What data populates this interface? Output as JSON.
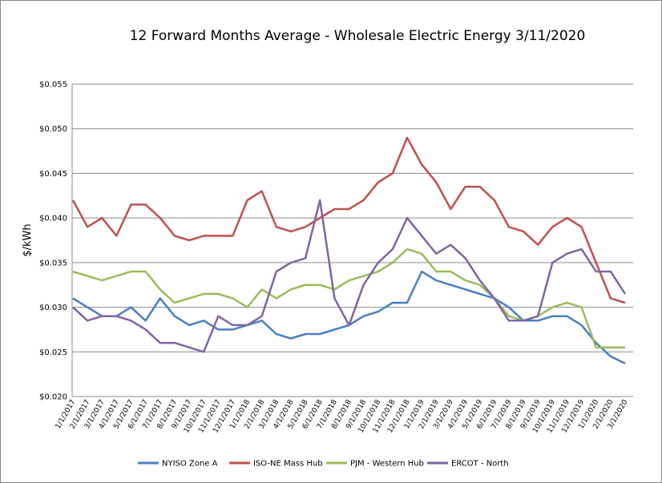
{
  "chart_data": {
    "type": "line",
    "title": "12 Forward Months Average - Wholesale Electric Energy 3/11/2020",
    "y_label": "$/kWh",
    "categories": [
      "1/1/2017",
      "2/1/2017",
      "3/1/2017",
      "4/1/2017",
      "5/1/2017",
      "6/1/2017",
      "7/1/2017",
      "8/1/2017",
      "9/1/2017",
      "10/1/2017",
      "11/1/2017",
      "12/1/2017",
      "1/1/2018",
      "2/1/2018",
      "3/1/2018",
      "4/1/2018",
      "5/1/2018",
      "6/1/2018",
      "7/1/2018",
      "8/1/2018",
      "9/1/2018",
      "10/1/2018",
      "11/1/2018",
      "12/1/2018",
      "1/1/2019",
      "2/1/2019",
      "3/1/2019",
      "4/1/2019",
      "5/1/2019",
      "6/1/2019",
      "7/1/2019",
      "8/1/2019",
      "9/1/2019",
      "10/1/2019",
      "11/1/2019",
      "12/1/2019",
      "1/1/2020",
      "2/1/2020",
      "3/1/2020"
    ],
    "series": [
      {
        "name": "NYISO Zone A",
        "color": "#4a7fc1",
        "values": [
          0.031,
          0.03,
          0.029,
          0.029,
          0.03,
          0.0285,
          0.031,
          0.029,
          0.028,
          0.0285,
          0.0275,
          0.0275,
          0.028,
          0.0285,
          0.027,
          0.0265,
          0.027,
          0.027,
          0.0275,
          0.028,
          0.029,
          0.0295,
          0.0305,
          0.0305,
          0.034,
          0.033,
          0.0325,
          0.032,
          0.0315,
          0.031,
          0.03,
          0.0285,
          0.0285,
          0.029,
          0.029,
          0.028,
          0.026,
          0.0245,
          0.0237
        ]
      },
      {
        "name": "ISO-NE Mass Hub",
        "color": "#c0504d",
        "values": [
          0.042,
          0.039,
          0.04,
          0.038,
          0.0415,
          0.0415,
          0.04,
          0.038,
          0.0375,
          0.038,
          0.038,
          0.038,
          0.042,
          0.043,
          0.039,
          0.0385,
          0.039,
          0.04,
          0.041,
          0.041,
          0.042,
          0.044,
          0.045,
          0.049,
          0.046,
          0.044,
          0.041,
          0.0435,
          0.0435,
          0.042,
          0.039,
          0.0385,
          0.037,
          0.039,
          0.04,
          0.039,
          0.035,
          0.031,
          0.0305
        ]
      },
      {
        "name": "PJM - Western Hub",
        "color": "#9bbb59",
        "values": [
          0.034,
          0.0335,
          0.033,
          0.0335,
          0.034,
          0.034,
          0.032,
          0.0305,
          0.031,
          0.0315,
          0.0315,
          0.031,
          0.03,
          0.032,
          0.031,
          0.032,
          0.0325,
          0.0325,
          0.032,
          0.033,
          0.0335,
          0.034,
          0.035,
          0.0365,
          0.036,
          0.034,
          0.034,
          0.033,
          0.0325,
          0.031,
          0.029,
          0.0285,
          0.029,
          0.03,
          0.0305,
          0.03,
          0.0255,
          0.0255,
          0.0255
        ]
      },
      {
        "name": "ERCOT - North",
        "color": "#8064a2",
        "values": [
          0.03,
          0.0285,
          0.029,
          0.029,
          0.0285,
          0.0275,
          0.026,
          0.026,
          0.0255,
          0.025,
          0.029,
          0.028,
          0.028,
          0.029,
          0.034,
          0.035,
          0.0355,
          0.042,
          0.031,
          0.028,
          0.0325,
          0.035,
          0.0365,
          0.04,
          0.038,
          0.036,
          0.037,
          0.0355,
          0.033,
          0.031,
          0.0285,
          0.0285,
          0.029,
          0.035,
          0.036,
          0.0365,
          0.034,
          0.034,
          0.0315
        ]
      }
    ],
    "ylim": [
      0.02,
      0.055
    ],
    "yticks": [
      {
        "value": 0.02,
        "label": "$0.020"
      },
      {
        "value": 0.025,
        "label": "$0.025"
      },
      {
        "value": 0.03,
        "label": "$0.030"
      },
      {
        "value": 0.035,
        "label": "$0.035"
      },
      {
        "value": 0.04,
        "label": "$0.040"
      },
      {
        "value": 0.045,
        "label": "$0.045"
      },
      {
        "value": 0.05,
        "label": "$0.050"
      },
      {
        "value": 0.055,
        "label": "$0.055"
      }
    ],
    "grid": true,
    "legend": "bottom"
  }
}
